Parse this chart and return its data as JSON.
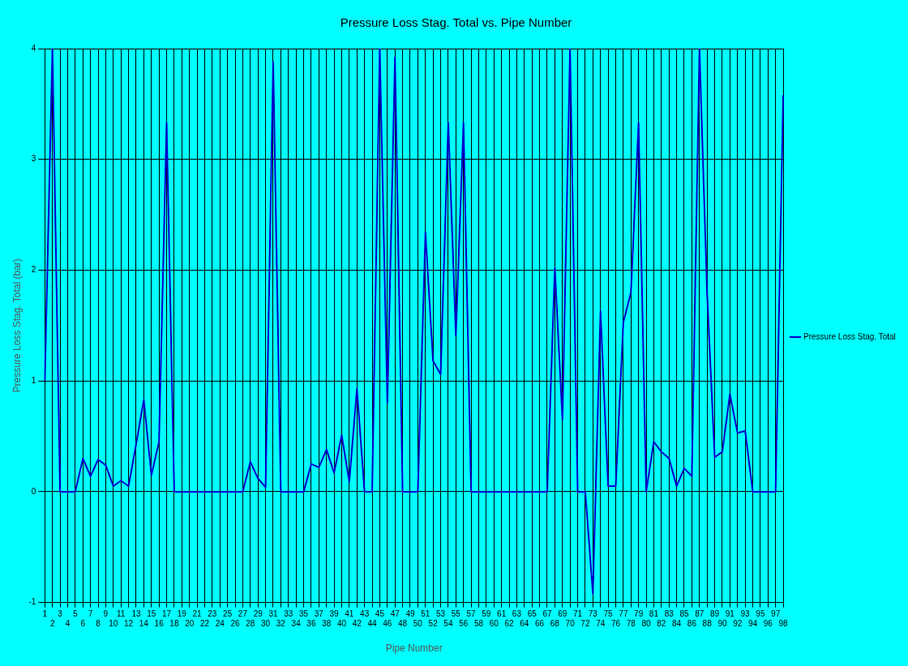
{
  "chart_data": {
    "type": "line",
    "title": "Pressure Loss Stag. Total vs. Pipe Number",
    "xlabel": "Pipe Number",
    "ylabel": "Pressure Loss Stag. Total (bar)",
    "categories": [
      "1",
      "2",
      "3",
      "4",
      "5",
      "6",
      "7",
      "8",
      "9",
      "10",
      "11",
      "12",
      "13",
      "14",
      "15",
      "16",
      "17",
      "18",
      "19",
      "20",
      "21",
      "22",
      "23",
      "24",
      "25",
      "26",
      "27",
      "28",
      "29",
      "30",
      "31",
      "32",
      "33",
      "34",
      "35",
      "36",
      "37",
      "38",
      "39",
      "40",
      "41",
      "42",
      "43",
      "44",
      "45",
      "46",
      "47",
      "48",
      "49",
      "50",
      "51",
      "52",
      "53",
      "54",
      "55",
      "56",
      "57",
      "58",
      "59",
      "60",
      "61",
      "62",
      "63",
      "64",
      "65",
      "66",
      "67",
      "68",
      "69",
      "70",
      "71",
      "72",
      "73",
      "74",
      "75",
      "76",
      "77",
      "78",
      "79",
      "80",
      "81",
      "82",
      "83",
      "84",
      "85",
      "86",
      "87",
      "88",
      "89",
      "90",
      "91",
      "92",
      "93",
      "94",
      "95",
      "96",
      "97",
      "98"
    ],
    "series": [
      {
        "name": "Pressure Loss Stag. Total",
        "color": "#0000cc",
        "values": [
          1.0,
          4,
          0,
          0,
          0,
          0.3,
          0.14,
          0.29,
          0.24,
          0.05,
          0.1,
          0.05,
          0.43,
          0.83,
          0.15,
          0.45,
          3.33,
          0,
          0,
          0,
          0,
          0,
          0,
          0,
          0,
          0,
          0,
          0.27,
          0.12,
          0.04,
          3.88,
          0,
          0,
          0,
          0,
          0.25,
          0.22,
          0.38,
          0.17,
          0.51,
          0.09,
          0.93,
          0,
          0,
          4,
          0.8,
          3.92,
          0,
          0,
          0,
          2.34,
          1.18,
          1.06,
          3.33,
          1.41,
          3.33,
          0,
          0,
          0,
          0,
          0,
          0,
          0,
          0,
          0,
          0,
          0,
          2.02,
          0.65,
          4,
          0,
          0,
          -0.92,
          1.63,
          0.05,
          0.05,
          1.53,
          1.8,
          3.33,
          0,
          0.45,
          0.36,
          0.3,
          0.05,
          0.21,
          0.14,
          4,
          1.8,
          0.31,
          0.36,
          0.88,
          0.53,
          0.55,
          0,
          0,
          0,
          0,
          3.58
        ]
      }
    ],
    "ylim": [
      -1,
      4
    ],
    "yticks": [
      -1,
      0,
      1,
      2,
      3,
      4
    ],
    "grid": true,
    "legend": "right",
    "marker": "none",
    "line_style": "solid"
  }
}
